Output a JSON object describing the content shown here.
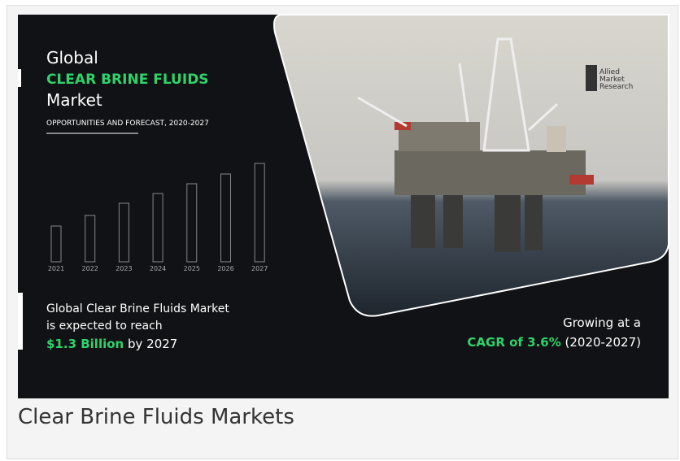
{
  "banner": {
    "title_line1": "Global",
    "title_highlight": "CLEAR BRINE FLUIDS",
    "title_line3": "Market",
    "subtitle": "OPPORTUNITIES AND FORECAST, 2020-2027",
    "years": [
      "2021",
      "2022",
      "2023",
      "2024",
      "2025",
      "2026",
      "2027"
    ],
    "summary": {
      "line1": "Global Clear Brine Fluids Market",
      "line2": "is expected to reach",
      "amount": "$1.3 Billion",
      "amount_suffix": "by 2027"
    },
    "growth": {
      "line1": "Growing at a",
      "cagr": "CAGR of 3.6%",
      "period": "(2020-2027)"
    },
    "logo": [
      "Allied",
      "Market",
      "Research"
    ]
  },
  "caption": "Clear Brine Fluids Markets"
}
